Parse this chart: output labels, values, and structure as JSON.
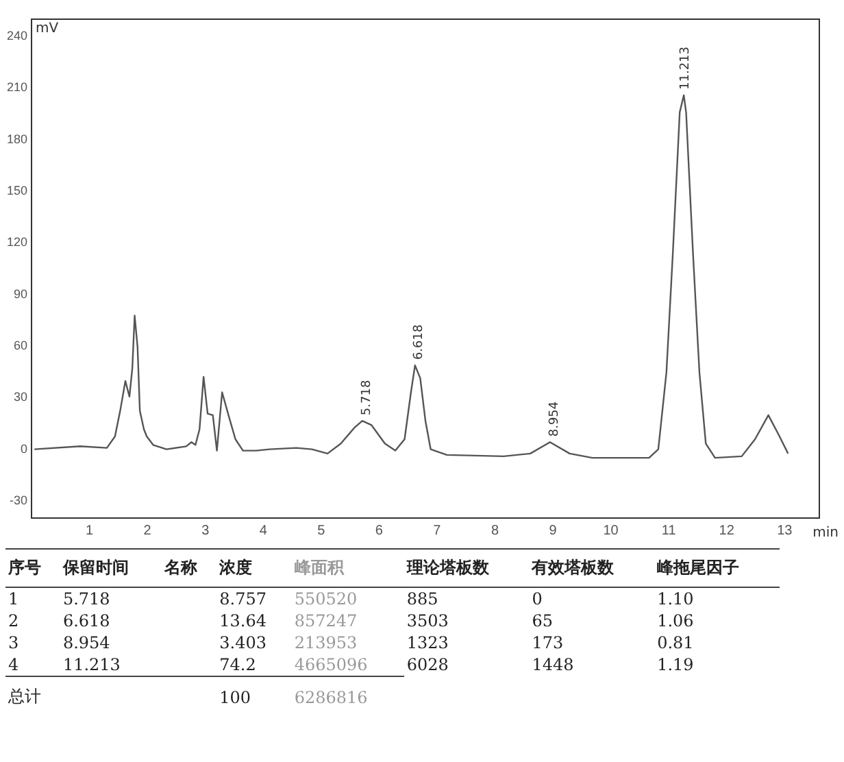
{
  "chart_data": {
    "type": "line",
    "xlabel": "min",
    "ylabel": "mV",
    "xlim": [
      0,
      13.6
    ],
    "xticks": [
      1,
      2,
      3,
      4,
      5,
      6,
      7,
      8,
      9,
      10,
      11,
      12,
      13
    ],
    "ylim": [
      -40,
      250
    ],
    "yticks": [
      -30,
      0,
      30,
      60,
      90,
      120,
      150,
      180,
      210,
      240
    ],
    "grid": false,
    "legend": false,
    "series": [
      {
        "color": "#555555",
        "x": [
          0.05,
          0.84,
          1.3,
          1.44,
          1.53,
          1.62,
          1.69,
          1.74,
          1.78,
          1.83,
          1.87,
          1.94,
          1.99,
          2.1,
          2.33,
          2.67,
          2.76,
          2.83,
          2.9,
          2.97,
          3.04,
          3.13,
          3.2,
          3.29,
          3.4,
          3.52,
          3.65,
          3.88,
          4.11,
          4.57,
          4.84,
          5.11,
          5.34,
          5.57,
          5.71,
          5.87,
          6.1,
          6.28,
          6.44,
          6.55,
          6.62,
          6.71,
          6.8,
          6.89,
          7.17,
          8.15,
          8.61,
          8.95,
          9.29,
          9.68,
          10.66,
          10.82,
          10.96,
          11.07,
          11.19,
          11.26,
          11.3,
          11.42,
          11.53,
          11.64,
          11.8,
          12.26,
          12.49,
          12.72,
          12.9,
          13.06
        ],
        "values": [
          0,
          1.7,
          0.8,
          7.4,
          22.3,
          39.7,
          30.6,
          47.1,
          77.7,
          59.5,
          22.3,
          11.6,
          7.4,
          2.5,
          0,
          1.7,
          4.1,
          2.5,
          11.6,
          42.1,
          20.7,
          19.8,
          -0.8,
          33.1,
          19.8,
          5.8,
          -0.8,
          -0.8,
          0,
          0.8,
          0,
          -2.5,
          3.3,
          12.4,
          16.5,
          14.0,
          3.3,
          -0.8,
          5.8,
          33.1,
          48.8,
          41.3,
          16.5,
          0,
          -3.3,
          -4.1,
          -2.5,
          4.1,
          -2.5,
          -5.0,
          -5.0,
          0,
          44.6,
          113.2,
          195.9,
          205.8,
          195.9,
          113.2,
          44.6,
          3.3,
          -5.0,
          -4.1,
          5.8,
          19.8,
          8.3,
          -2.5
        ]
      }
    ],
    "annotations": [
      {
        "text": "5.718",
        "x": 5.718,
        "y": 16.5
      },
      {
        "text": "6.618",
        "x": 6.618,
        "y": 48.8
      },
      {
        "text": "8.954",
        "x": 8.954,
        "y": 4.1
      },
      {
        "text": "11.213",
        "x": 11.213,
        "y": 205.8
      },
      "序号\t保留时间\t名称\t浓度\t峰面积\t理论塔板数\t有效塔板数\t峰拖尾因子",
      "1\t5.718\t\t8.757\t550520\t885\t0\t1.10",
      "2\t6.618\t\t13.64\t857247\t3503\t65\t1.06",
      "3\t8.954\t\t3.403\t213953\t1323\t173\t0.81",
      "4\t11.213\t\t74.2\t4665096\t6028\t1448\t1.19",
      "总计\t\t\t100\t6286816"
    ]
  }
}
